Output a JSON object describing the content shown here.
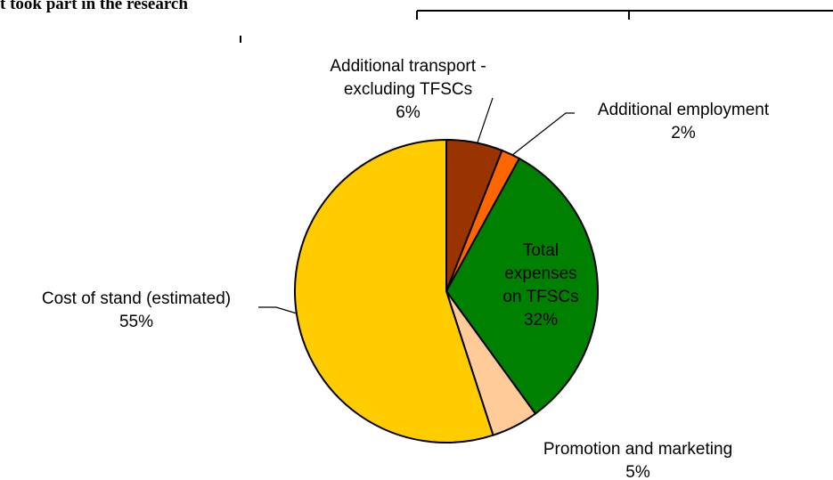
{
  "page_header": {
    "title_fragment": "t took part in the research"
  },
  "chart_data": {
    "type": "pie",
    "categories": [
      "Additional transport - excluding TFSCs",
      "Additional employment",
      "Total expenses on TFSCs",
      "Promotion and marketing",
      "Cost of stand (estimated)"
    ],
    "values": [
      6,
      2,
      32,
      5,
      55
    ],
    "value_labels": [
      "6%",
      "2%",
      "32%",
      "5%",
      "55%"
    ],
    "colors": [
      "#993300",
      "#ff6600",
      "#008000",
      "#ffcc99",
      "#ffcc00"
    ]
  }
}
